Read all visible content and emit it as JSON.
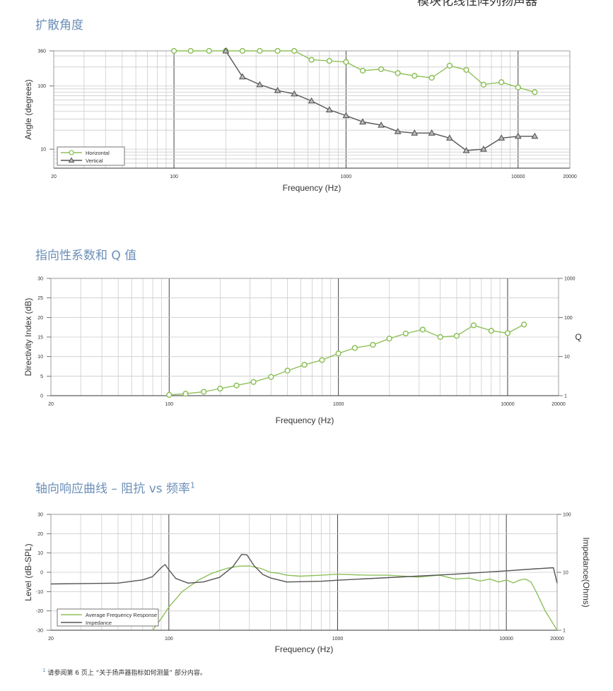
{
  "page": {
    "header_title": "模块化线性阵列扬声器",
    "footnote_marker": "1",
    "footnote": "请参阅第 6 页上 “关于扬声器指标如何测量” 部分内容。"
  },
  "sections": {
    "dispersion_title": "扩散角度",
    "directivity_title": "指向性系数和 Q 值",
    "response_title": "轴向响应曲线 – 阻抗 vs 频率",
    "response_title_sup": "1"
  },
  "colors": {
    "horizontal": "#8ec05a",
    "vertical": "#555555",
    "grid": "#cccccc",
    "decade_line": "#444444",
    "title": "#6b8fb8"
  },
  "chart_data": [
    {
      "id": "dispersion",
      "type": "line",
      "xscale": "log",
      "yscale": "log",
      "xlim": [
        20,
        20000
      ],
      "ylim": [
        5,
        360
      ],
      "xticks": [
        20,
        100,
        1000,
        10000,
        20000
      ],
      "xtick_labels": [
        "20",
        "100",
        "1000",
        "10000",
        "20000"
      ],
      "yticks": [
        10,
        100,
        360
      ],
      "ytick_labels": [
        "10",
        "100",
        "360"
      ],
      "xlabel": "Frequency (Hz)",
      "ylabel": "Angle (degrees)",
      "legend_position": "bottom-left",
      "grid": true,
      "series": [
        {
          "name": "Horizontal",
          "color": "#8ec05a",
          "marker": "circle",
          "x": [
            100,
            125,
            160,
            200,
            250,
            315,
            400,
            500,
            630,
            800,
            1000,
            1250,
            1600,
            2000,
            2500,
            3150,
            4000,
            5000,
            6300,
            8000,
            10000,
            12500
          ],
          "y": [
            360,
            360,
            360,
            360,
            360,
            360,
            360,
            360,
            260,
            250,
            240,
            175,
            185,
            160,
            145,
            135,
            210,
            180,
            105,
            115,
            95,
            80
          ]
        },
        {
          "name": "Vertical",
          "color": "#555555",
          "marker": "triangle",
          "x": [
            200,
            250,
            315,
            400,
            500,
            630,
            800,
            1000,
            1250,
            1600,
            2000,
            2500,
            3150,
            4000,
            5000,
            6300,
            8000,
            10000,
            12500
          ],
          "y": [
            360,
            140,
            105,
            85,
            75,
            58,
            42,
            34,
            27,
            24,
            19,
            18,
            18,
            15,
            9.5,
            10,
            15,
            16,
            16
          ]
        }
      ]
    },
    {
      "id": "directivity",
      "type": "line",
      "xscale": "log",
      "xlim": [
        20,
        20000
      ],
      "ylim": [
        0,
        30
      ],
      "xticks": [
        20,
        100,
        1000,
        10000,
        20000
      ],
      "xtick_labels": [
        "20",
        "100",
        "1000",
        "10000",
        "20000"
      ],
      "yticks": [
        0,
        5,
        10,
        15,
        20,
        25,
        30
      ],
      "xlabel": "Frequency (Hz)",
      "ylabel": "Directivity Index (dB)",
      "y2label": "Q",
      "y2scale": "log",
      "y2lim": [
        1,
        1000
      ],
      "y2ticks": [
        1,
        10,
        100,
        1000
      ],
      "grid": true,
      "series": [
        {
          "color": "#8ec05a",
          "marker": "circle",
          "x": [
            100,
            125,
            160,
            200,
            250,
            315,
            400,
            500,
            630,
            800,
            1000,
            1250,
            1600,
            2000,
            2500,
            3150,
            4000,
            5000,
            6300,
            8000,
            10000,
            12500
          ],
          "y": [
            0.2,
            0.5,
            1.0,
            1.8,
            2.6,
            3.5,
            4.8,
            6.4,
            7.9,
            9.1,
            10.8,
            12.2,
            13.0,
            14.6,
            15.9,
            16.9,
            15.0,
            15.3,
            18.0,
            16.6,
            16.0,
            18.2
          ]
        }
      ]
    },
    {
      "id": "response",
      "type": "line",
      "xscale": "log",
      "xlim": [
        20,
        20000
      ],
      "ylim": [
        -30,
        30
      ],
      "xticks": [
        20,
        100,
        1000,
        10000,
        20000
      ],
      "xtick_labels": [
        "20",
        "100",
        "1000",
        "10000",
        "20000"
      ],
      "yticks": [
        -30,
        -20,
        -10,
        0,
        10,
        20,
        30
      ],
      "xlabel": "Frequency (Hz)",
      "ylabel": "Level (dB-SPL)",
      "y2label": "Impedance(Ohms)",
      "y2scale": "log",
      "y2lim": [
        1,
        100
      ],
      "y2ticks": [
        1,
        10,
        100
      ],
      "legend_position": "bottom-left",
      "grid": true,
      "series": [
        {
          "name": "Average Frequency Response",
          "color": "#8ec05a",
          "axis": "left",
          "x": [
            80,
            90,
            100,
            120,
            150,
            180,
            220,
            260,
            300,
            350,
            400,
            450,
            500,
            600,
            800,
            1000,
            1500,
            2000,
            3000,
            4000,
            5000,
            6000,
            7000,
            8000,
            9000,
            10000,
            11000,
            12000,
            13000,
            14000,
            15000,
            17000,
            20000
          ],
          "y": [
            -30,
            -24,
            -18,
            -10,
            -4,
            -0.5,
            2,
            3.2,
            3.3,
            2,
            0,
            -0.5,
            -1.5,
            -2,
            -1.5,
            -1,
            -1.5,
            -1.5,
            -2.5,
            -1.5,
            -3.5,
            -3,
            -4.5,
            -3.5,
            -5,
            -4,
            -5.5,
            -4,
            -3.5,
            -5,
            -10,
            -20,
            -30
          ]
        },
        {
          "name": "Impedance",
          "color": "#555555",
          "axis": "right",
          "x": [
            20,
            50,
            70,
            80,
            90,
            95,
            100,
            110,
            130,
            160,
            200,
            240,
            270,
            290,
            320,
            360,
            400,
            500,
            800,
            1000,
            2000,
            5000,
            10000,
            15000,
            19000,
            20000
          ],
          "y": [
            6.3,
            6.5,
            7.4,
            8.4,
            12,
            13.6,
            11,
            7.8,
            6.5,
            6.8,
            8.2,
            12.6,
            20.4,
            20,
            13,
            9.2,
            8,
            6.8,
            7,
            7.3,
            8.1,
            9.3,
            10.6,
            11.5,
            12,
            6.5
          ]
        }
      ]
    }
  ]
}
